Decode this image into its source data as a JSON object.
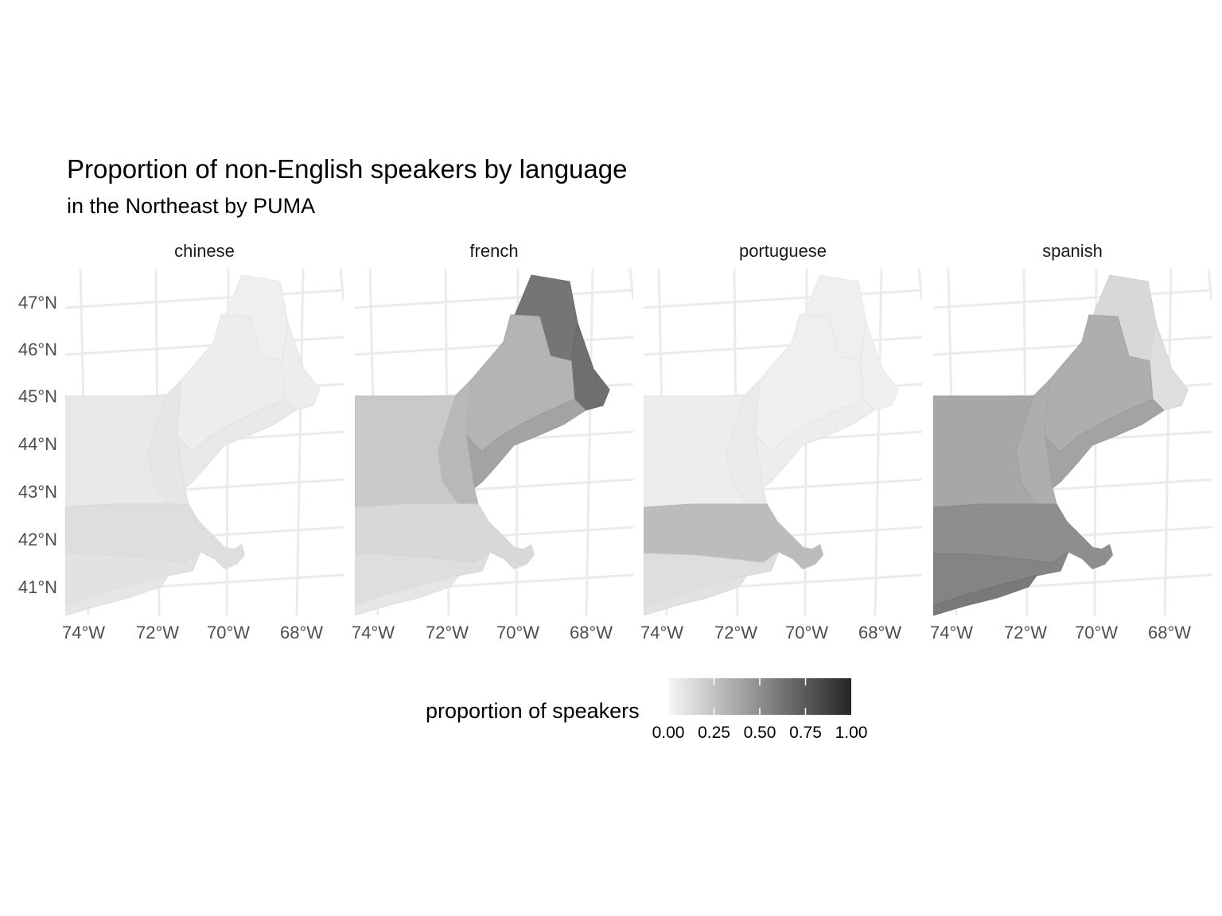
{
  "title": "Proportion of non-English speakers by language",
  "subtitle": "in the Northeast by PUMA",
  "legend": {
    "title": "proportion of speakers",
    "breaks": [
      "0.00",
      "0.25",
      "0.50",
      "0.75",
      "1.00"
    ],
    "low_color": "#f7f7f7",
    "high_color": "#252525"
  },
  "axes": {
    "y_ticks": [
      "47°N",
      "46°N",
      "45°N",
      "44°N",
      "43°N",
      "42°N",
      "41°N"
    ],
    "x_ticks": [
      "74°W",
      "72°W",
      "70°W",
      "68°W"
    ]
  },
  "chart_data": {
    "type": "heatmap",
    "map_kind": "choropleth facets",
    "facets": [
      "chinese",
      "french",
      "portuguese",
      "spanish"
    ],
    "fill_scale": [
      0,
      1
    ],
    "grid": true,
    "legend_position": "bottom",
    "regions": [
      "maine_north",
      "maine_east",
      "maine_central",
      "maine_south",
      "new_hampshire",
      "vermont",
      "massachusetts",
      "connecticut_ri",
      "long_island"
    ],
    "values": {
      "chinese": {
        "maine_north": 0.04,
        "maine_east": 0.05,
        "maine_central": 0.05,
        "maine_south": 0.07,
        "new_hampshire": 0.08,
        "vermont": 0.07,
        "massachusetts": 0.12,
        "connecticut_ri": 0.1,
        "long_island": 0.08
      },
      "french": {
        "maine_north": 0.62,
        "maine_east": 0.65,
        "maine_central": 0.32,
        "maine_south": 0.4,
        "new_hampshire": 0.3,
        "vermont": 0.22,
        "massachusetts": 0.15,
        "connecticut_ri": 0.12,
        "long_island": 0.08
      },
      "portuguese": {
        "maine_north": 0.04,
        "maine_east": 0.04,
        "maine_central": 0.04,
        "maine_south": 0.05,
        "new_hampshire": 0.06,
        "vermont": 0.05,
        "massachusetts": 0.28,
        "connecticut_ri": 0.12,
        "long_island": 0.1
      },
      "spanish": {
        "maine_north": 0.15,
        "maine_east": 0.12,
        "maine_central": 0.35,
        "maine_south": 0.4,
        "new_hampshire": 0.35,
        "vermont": 0.38,
        "massachusetts": 0.5,
        "connecticut_ri": 0.55,
        "long_island": 0.6
      }
    }
  }
}
